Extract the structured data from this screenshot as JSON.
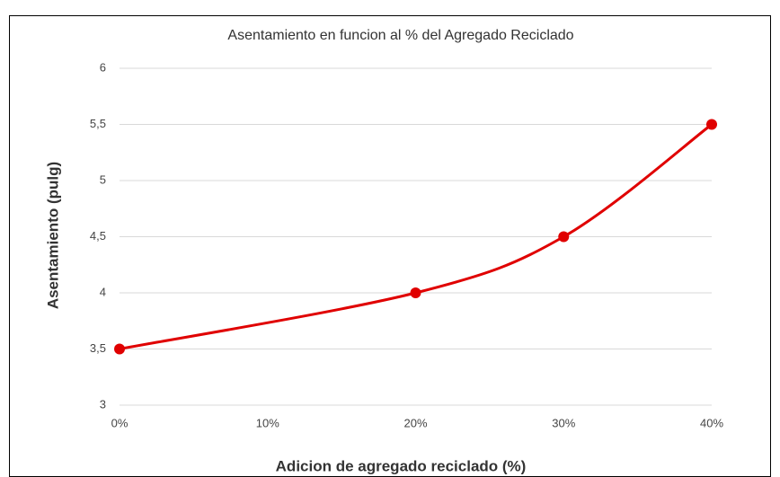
{
  "chart_data": {
    "type": "line",
    "title": "Asentamiento en funcion al % del Agregado Reciclado",
    "xlabel": "Adicion de agregado reciclado (%)",
    "ylabel": "Asentamiento (pulg)",
    "x": [
      0,
      20,
      30,
      40
    ],
    "series": [
      {
        "name": "Asentamiento",
        "color": "#e00000",
        "values": [
          3.5,
          4,
          4.5,
          5.5
        ]
      }
    ],
    "xlim": [
      0,
      40
    ],
    "xticks": [
      {
        "value": 0,
        "label": "0%"
      },
      {
        "value": 10,
        "label": "10%"
      },
      {
        "value": 20,
        "label": "20%"
      },
      {
        "value": 30,
        "label": "30%"
      },
      {
        "value": 40,
        "label": "40%"
      }
    ],
    "ylim": [
      3,
      6
    ],
    "yticks": [
      3,
      {
        "value": 3.5,
        "label": "3,5"
      },
      4,
      {
        "value": 4.5,
        "label": "4,5"
      },
      5,
      {
        "value": 5.5,
        "label": "5,5"
      },
      6
    ],
    "grid": true,
    "smooth": true
  }
}
